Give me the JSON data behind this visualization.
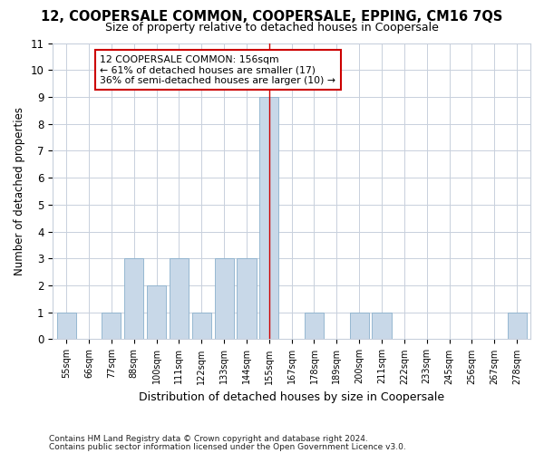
{
  "title1": "12, COOPERSALE COMMON, COOPERSALE, EPPING, CM16 7QS",
  "title2": "Size of property relative to detached houses in Coopersale",
  "xlabel": "Distribution of detached houses by size in Coopersale",
  "ylabel": "Number of detached properties",
  "bar_labels": [
    "55sqm",
    "66sqm",
    "77sqm",
    "88sqm",
    "100sqm",
    "111sqm",
    "122sqm",
    "133sqm",
    "144sqm",
    "155sqm",
    "167sqm",
    "178sqm",
    "189sqm",
    "200sqm",
    "211sqm",
    "222sqm",
    "233sqm",
    "245sqm",
    "256sqm",
    "267sqm",
    "278sqm"
  ],
  "bar_values": [
    1,
    0,
    1,
    3,
    2,
    3,
    1,
    3,
    3,
    9,
    0,
    1,
    0,
    1,
    1,
    0,
    0,
    0,
    0,
    0,
    1
  ],
  "highlight_index": 9,
  "bar_color_normal": "#c8d8e8",
  "bar_edge_color": "#8ab0cc",
  "highlight_line_color": "#cc0000",
  "annotation_text": "12 COOPERSALE COMMON: 156sqm\n← 61% of detached houses are smaller (17)\n36% of semi-detached houses are larger (10) →",
  "annotation_box_color": "#ffffff",
  "annotation_box_edge": "#cc0000",
  "ylim": [
    0,
    11
  ],
  "yticks": [
    0,
    1,
    2,
    3,
    4,
    5,
    6,
    7,
    8,
    9,
    10,
    11
  ],
  "footer1": "Contains HM Land Registry data © Crown copyright and database right 2024.",
  "footer2": "Contains public sector information licensed under the Open Government Licence v3.0.",
  "bg_color": "#ffffff",
  "plot_bg_color": "#ffffff",
  "grid_color": "#c8d0dc"
}
